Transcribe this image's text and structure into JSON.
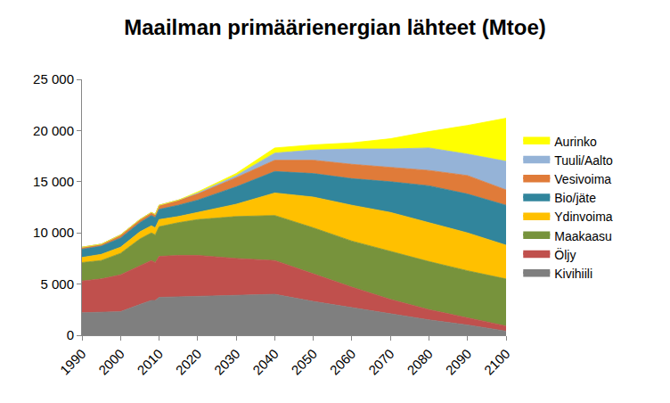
{
  "chart_data": {
    "type": "area",
    "title": "Maailman primäärienergian lähteet (Mtoe)",
    "stacked": true,
    "legend": "right",
    "grid": false,
    "x": [
      1990,
      1995,
      2000,
      2005,
      2008,
      2009,
      2010,
      2015,
      2020,
      2030,
      2040,
      2050,
      2060,
      2070,
      2080,
      2090,
      2100
    ],
    "xlim": [
      1990,
      2100
    ],
    "xticks": [
      1990,
      2000,
      2010,
      2020,
      2030,
      2040,
      2050,
      2060,
      2070,
      2080,
      2090,
      2100
    ],
    "ylim": [
      0,
      25000
    ],
    "yticks": [
      0,
      {
        "value": 5000,
        "label": "5 000"
      },
      {
        "value": 10000,
        "label": "10 000"
      },
      {
        "value": 15000,
        "label": "15 000"
      },
      {
        "value": 20000,
        "label": "20 000"
      },
      {
        "value": 25000,
        "label": "25 000"
      }
    ],
    "series": [
      {
        "name": "Kivihiili",
        "color": "#7f7f7f",
        "values": [
          2200,
          2250,
          2300,
          3000,
          3400,
          3400,
          3700,
          3750,
          3800,
          3900,
          4000,
          3300,
          2700,
          2100,
          1500,
          1000,
          400
        ]
      },
      {
        "name": "Öljy",
        "color": "#c0504d",
        "values": [
          3100,
          3250,
          3600,
          3800,
          3900,
          3700,
          4000,
          4050,
          4000,
          3600,
          3300,
          2700,
          2000,
          1400,
          1000,
          700,
          500
        ]
      },
      {
        "name": "Maakaasu",
        "color": "#77933c",
        "values": [
          1800,
          1800,
          2100,
          2600,
          2700,
          2700,
          2900,
          3200,
          3500,
          4100,
          4400,
          4500,
          4500,
          4700,
          4700,
          4600,
          4600
        ]
      },
      {
        "name": "Ydinvoima",
        "color": "#ffc000",
        "values": [
          500,
          600,
          600,
          700,
          700,
          700,
          700,
          600,
          700,
          1200,
          2200,
          3000,
          3500,
          3800,
          3800,
          3700,
          3300
        ]
      },
      {
        "name": "Bio/jäte",
        "color": "#31859c",
        "values": [
          800,
          800,
          900,
          900,
          1000,
          1000,
          1000,
          1100,
          1200,
          1700,
          2100,
          2300,
          2600,
          3000,
          3600,
          3800,
          3900
        ]
      },
      {
        "name": "Vesivoima",
        "color": "#e07b39",
        "values": [
          200,
          200,
          300,
          300,
          300,
          300,
          400,
          500,
          600,
          900,
          1100,
          1300,
          1400,
          1400,
          1500,
          1800,
          1500
        ]
      },
      {
        "name": "Tuuli/Aalto",
        "color": "#95b3d7",
        "values": [
          0,
          0,
          0,
          0,
          0,
          0,
          0,
          0,
          100,
          200,
          700,
          1000,
          1500,
          1800,
          2200,
          2100,
          2800
        ]
      },
      {
        "name": "Aurinko",
        "color": "#ffff00",
        "values": [
          0,
          0,
          0,
          0,
          0,
          0,
          0,
          0,
          100,
          200,
          500,
          500,
          600,
          1000,
          1600,
          2800,
          4200
        ]
      }
    ]
  }
}
